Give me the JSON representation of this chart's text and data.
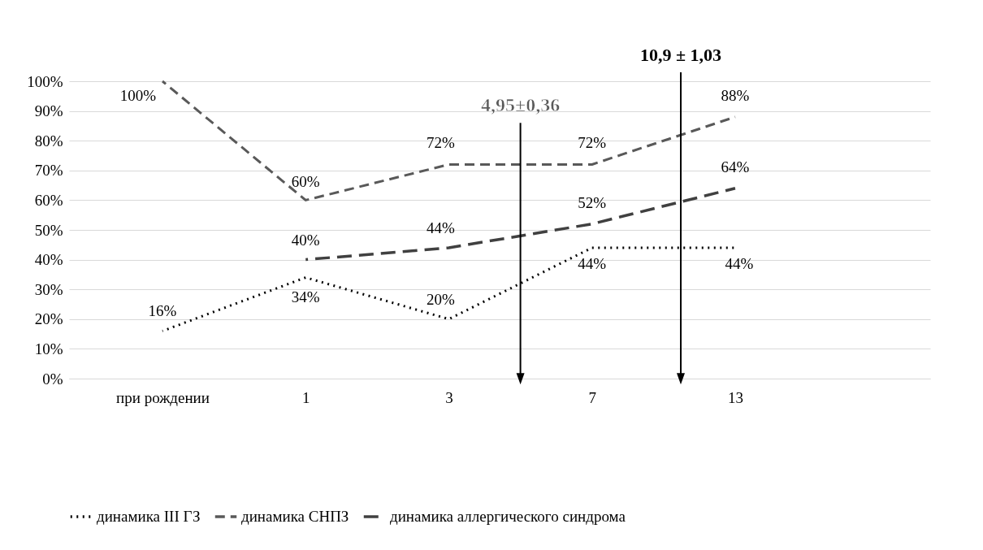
{
  "chart_data": {
    "type": "line",
    "categories": [
      "при рождении",
      "1",
      "3",
      "7",
      "13"
    ],
    "series": [
      {
        "name": "динамика III ГЗ",
        "color": "#000000",
        "line_style": "dotted",
        "values": [
          16,
          34,
          20,
          44,
          44
        ],
        "value_labels": [
          "16%",
          "34%",
          "20%",
          "44%",
          "44%"
        ]
      },
      {
        "name": "динамика СНПЗ",
        "color": "#595959",
        "line_style": "dashed",
        "values": [
          100,
          60,
          72,
          72,
          88
        ],
        "value_labels": [
          "100%",
          "60%",
          "72%",
          "72%",
          "88%"
        ]
      },
      {
        "name": "динамика аллергического синдрома",
        "color": "#404040",
        "line_style": "dashed",
        "values": [
          null,
          40,
          44,
          52,
          64
        ],
        "value_labels": [
          null,
          "40%",
          "44%",
          "52%",
          "64%"
        ]
      }
    ],
    "ylim": [
      0,
      100
    ],
    "yticks": [
      {
        "value": 0,
        "label": "0%"
      },
      {
        "value": 10,
        "label": "10%"
      },
      {
        "value": 20,
        "label": "20%"
      },
      {
        "value": 30,
        "label": "30%"
      },
      {
        "value": 40,
        "label": "40%"
      },
      {
        "value": 50,
        "label": "50%"
      },
      {
        "value": 60,
        "label": "60%"
      },
      {
        "value": 70,
        "label": "70%"
      },
      {
        "value": 80,
        "label": "80%"
      },
      {
        "value": 90,
        "label": "90%"
      },
      {
        "value": 100,
        "label": "100%"
      }
    ],
    "grid": "y",
    "legend": "bottom",
    "marker": "none",
    "annotations": [
      "4,95±0,36",
      "10,9 ± 1,03"
    ]
  }
}
